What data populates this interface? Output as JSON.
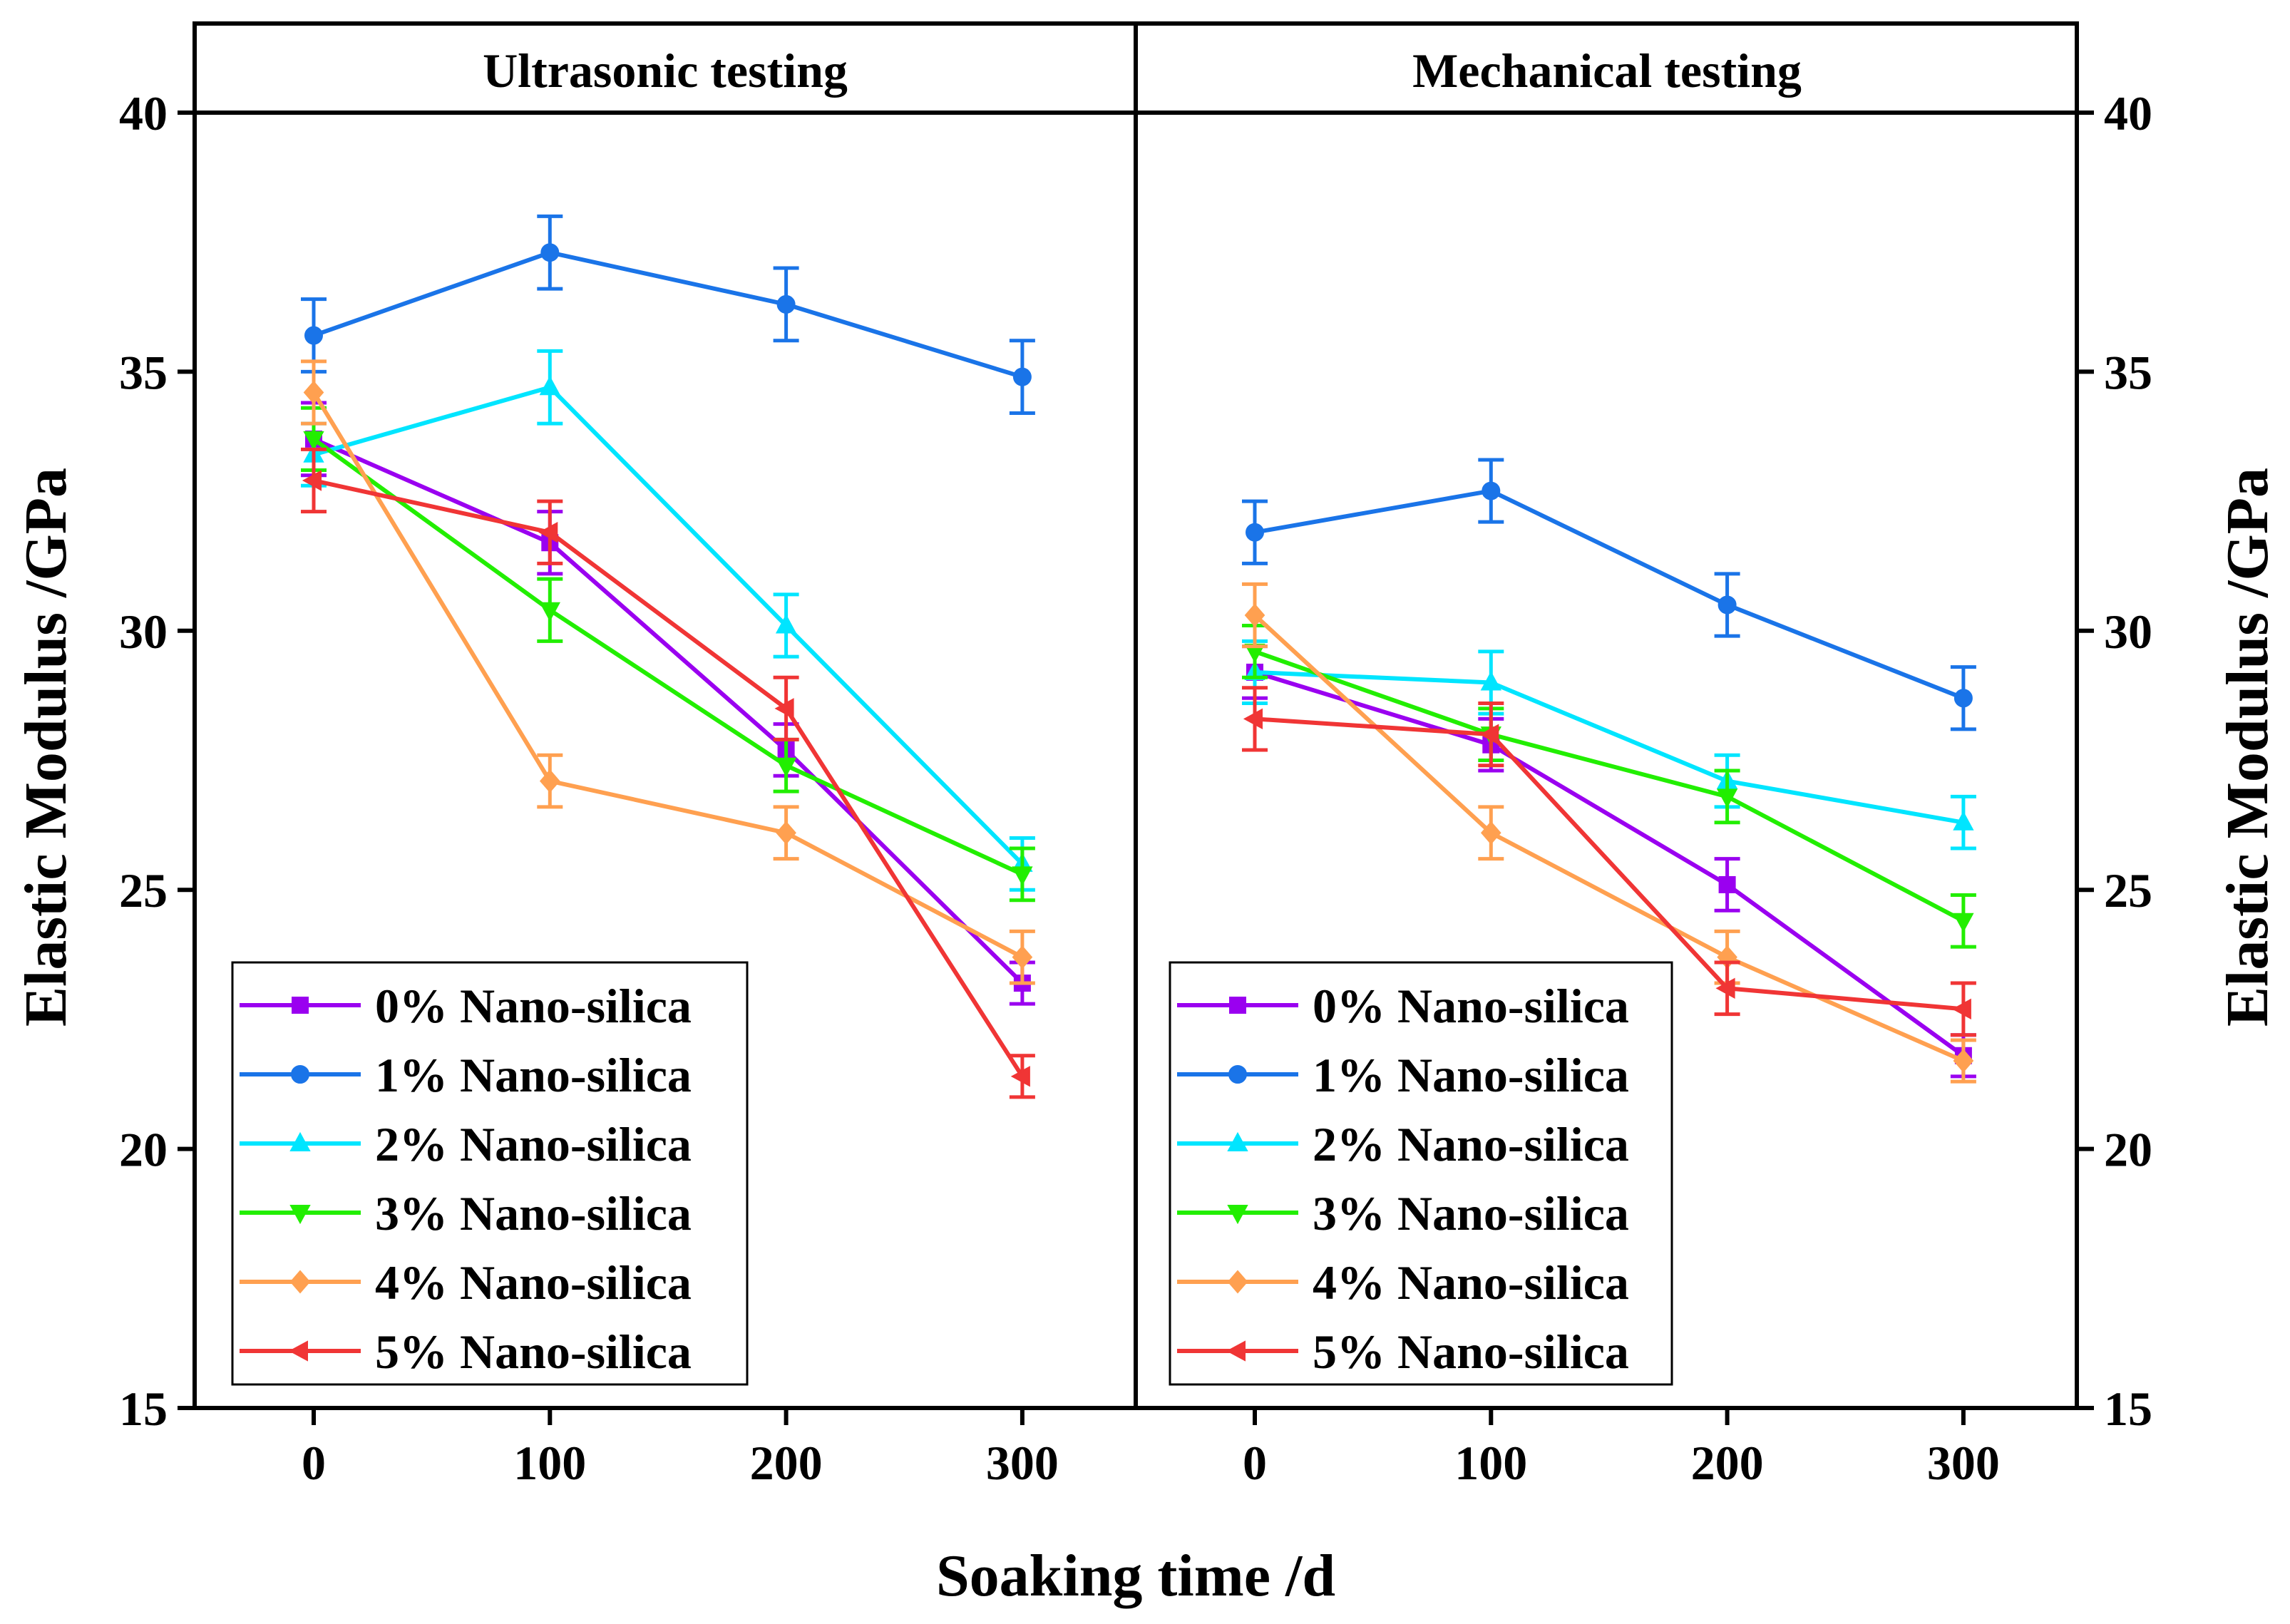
{
  "chart_data": {
    "type": "line",
    "x": [
      0,
      100,
      200,
      300
    ],
    "xlabel": "Soaking time /d",
    "ylabel_left": "Elastic Modulus /GPa",
    "ylabel_right": "Elastic Modulus /GPa",
    "ylim": [
      15,
      40
    ],
    "yticks": [
      15,
      20,
      25,
      30,
      35,
      40
    ],
    "xticks": [
      0,
      100,
      200,
      300
    ],
    "legend_position": "bottom-left",
    "series_styles": [
      {
        "name": "0% Nano-silica",
        "color": "#9a00f0",
        "marker": "square"
      },
      {
        "name": "1% Nano-silica",
        "color": "#1a74e8",
        "marker": "circle"
      },
      {
        "name": "2% Nano-silica",
        "color": "#00e5ff",
        "marker": "triangle-up"
      },
      {
        "name": "3% Nano-silica",
        "color": "#22ee00",
        "marker": "triangle-down"
      },
      {
        "name": "4% Nano-silica",
        "color": "#ffa050",
        "marker": "diamond"
      },
      {
        "name": "5% Nano-silica",
        "color": "#f03535",
        "marker": "triangle-left"
      }
    ],
    "panels": [
      {
        "title": "Ultrasonic testing",
        "series": [
          {
            "name": "0% Nano-silica",
            "values": [
              33.7,
              31.7,
              27.7,
              23.2
            ],
            "errors": [
              0.7,
              0.6,
              0.5,
              0.4
            ]
          },
          {
            "name": "1% Nano-silica",
            "values": [
              35.7,
              37.3,
              36.3,
              34.9
            ],
            "errors": [
              0.7,
              0.7,
              0.7,
              0.7
            ]
          },
          {
            "name": "2% Nano-silica",
            "values": [
              33.4,
              34.7,
              30.1,
              25.5
            ],
            "errors": [
              0.6,
              0.7,
              0.6,
              0.5
            ]
          },
          {
            "name": "3% Nano-silica",
            "values": [
              33.7,
              30.4,
              27.4,
              25.3
            ],
            "errors": [
              0.6,
              0.6,
              0.5,
              0.5
            ]
          },
          {
            "name": "4% Nano-silica",
            "values": [
              34.6,
              27.1,
              26.1,
              23.7
            ],
            "errors": [
              0.6,
              0.5,
              0.5,
              0.5
            ]
          },
          {
            "name": "5% Nano-silica",
            "values": [
              32.9,
              31.9,
              28.5,
              21.4
            ],
            "errors": [
              0.6,
              0.6,
              0.6,
              0.4
            ]
          }
        ]
      },
      {
        "title": "Mechanical testing",
        "series": [
          {
            "name": "0% Nano-silica",
            "values": [
              29.2,
              27.8,
              25.1,
              21.8
            ],
            "errors": [
              0.5,
              0.5,
              0.5,
              0.4
            ]
          },
          {
            "name": "1% Nano-silica",
            "values": [
              31.9,
              32.7,
              30.5,
              28.7
            ],
            "errors": [
              0.6,
              0.6,
              0.6,
              0.6
            ]
          },
          {
            "name": "2% Nano-silica",
            "values": [
              29.2,
              29.0,
              27.1,
              26.3
            ],
            "errors": [
              0.6,
              0.6,
              0.5,
              0.5
            ]
          },
          {
            "name": "3% Nano-silica",
            "values": [
              29.6,
              28.0,
              26.8,
              24.4
            ],
            "errors": [
              0.5,
              0.5,
              0.5,
              0.5
            ]
          },
          {
            "name": "4% Nano-silica",
            "values": [
              30.3,
              26.1,
              23.7,
              21.7
            ],
            "errors": [
              0.6,
              0.5,
              0.5,
              0.4
            ]
          },
          {
            "name": "5% Nano-silica",
            "values": [
              28.3,
              28.0,
              23.1,
              22.7
            ],
            "errors": [
              0.6,
              0.6,
              0.5,
              0.5
            ]
          }
        ]
      }
    ]
  }
}
